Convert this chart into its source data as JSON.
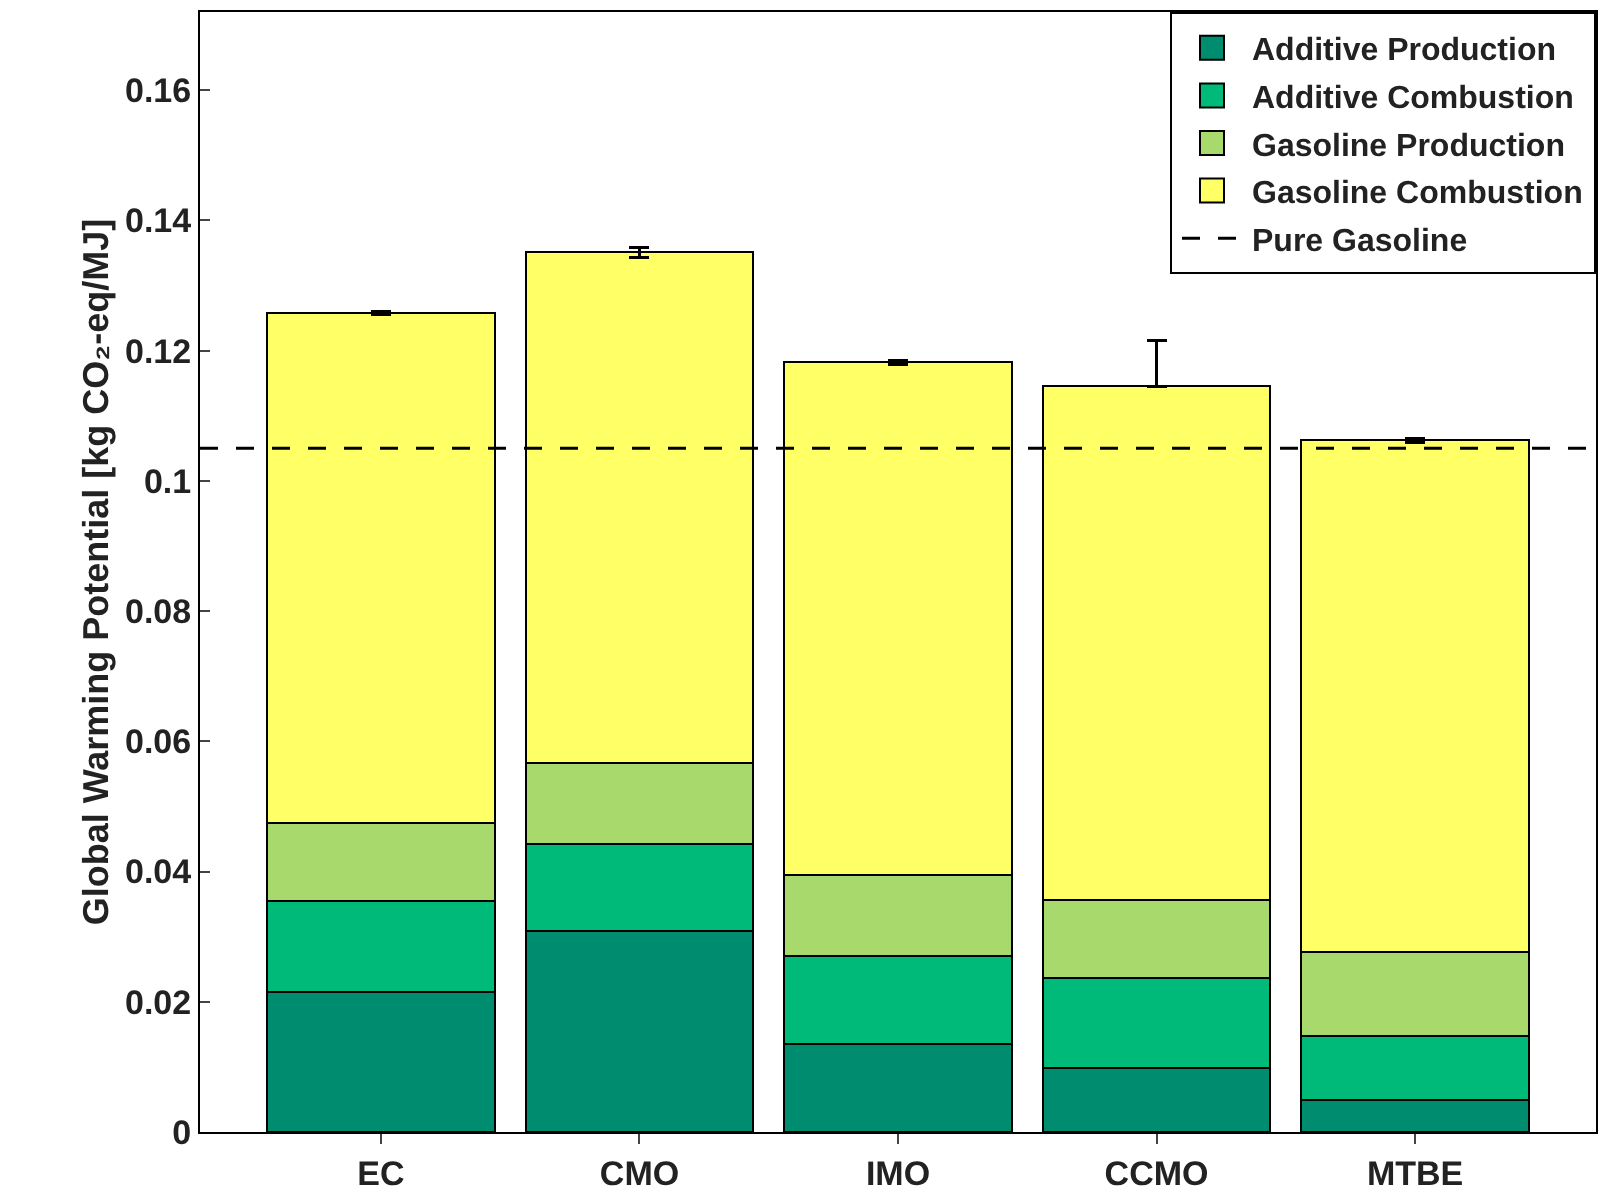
{
  "chart_data": {
    "type": "bar",
    "stacked": true,
    "ylabel": "Global Warming Potential [kg CO₂-eq/MJ]",
    "categories": [
      "EC",
      "CMO",
      "IMO",
      "CCMO",
      "MTBE"
    ],
    "series": [
      {
        "name": "Additive Production",
        "color": "#008c6e",
        "values": [
          0.0215,
          0.0308,
          0.0135,
          0.0098,
          0.0049
        ]
      },
      {
        "name": "Additive Combustion",
        "color": "#00ba7a",
        "values": [
          0.0139,
          0.0135,
          0.0136,
          0.0139,
          0.0099
        ]
      },
      {
        "name": "Gasoline Production",
        "color": "#a8d96c",
        "values": [
          0.012,
          0.0123,
          0.0123,
          0.012,
          0.0129
        ]
      },
      {
        "name": "Gasoline Combustion",
        "color": "#ffff66",
        "values": [
          0.0784,
          0.0785,
          0.0788,
          0.0788,
          0.0785
        ],
        "errors": [
          [
            0.1256,
            0.126
          ],
          [
            0.1343,
            0.1359
          ],
          [
            0.1179,
            0.1185
          ],
          [
            0.1145,
            0.1215
          ],
          [
            0.1059,
            0.1065
          ]
        ]
      }
    ],
    "ref_lines": [
      {
        "axis": "y",
        "value": 0.105,
        "label": "Pure Gasoline",
        "line_style": "dashed",
        "color": "#000000"
      }
    ],
    "ylim": [
      0,
      0.172
    ],
    "yticks": [
      0,
      0.02,
      0.04,
      0.06,
      0.08,
      0.1,
      0.12,
      0.14,
      0.16
    ],
    "grid": false,
    "legend": "top right"
  }
}
